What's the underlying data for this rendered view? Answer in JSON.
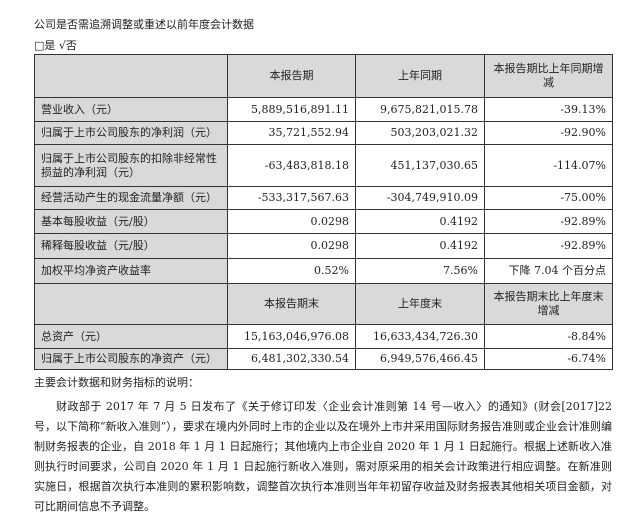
{
  "heading": "公司是否需追溯调整或重述以前年度会计数据",
  "choice": "□是 √否",
  "table1": {
    "headers": [
      "",
      "本报告期",
      "上年同期",
      "本报告期比上年同期增减"
    ],
    "rows": [
      [
        "营业收入（元）",
        "5,889,516,891.11",
        "9,675,821,015.78",
        "-39.13%"
      ],
      [
        "归属于上市公司股东的净利润（元）",
        "35,721,552.94",
        "503,203,021.32",
        "-92.90%"
      ],
      [
        "归属于上市公司股东的扣除非经常性损益的净利润（元）",
        "-63,483,818.18",
        "451,137,030.65",
        "-114.07%"
      ],
      [
        "经营活动产生的现金流量净额（元）",
        "-533,317,567.63",
        "-304,749,910.09",
        "-75.00%"
      ],
      [
        "基本每股收益（元/股）",
        "0.0298",
        "0.4192",
        "-92.89%"
      ],
      [
        "稀释每股收益（元/股）",
        "0.0298",
        "0.4192",
        "-92.89%"
      ],
      [
        "加权平均净资产收益率",
        "0.52%",
        "7.56%",
        "下降 7.04 个百分点"
      ]
    ]
  },
  "table2": {
    "headers": [
      "",
      "本报告期末",
      "上年度末",
      "本报告期末比上年度末增减"
    ],
    "rows": [
      [
        "总资产（元）",
        "15,163,046,976.08",
        "16,633,434,726.30",
        "-8.84%"
      ],
      [
        "归属于上市公司股东的净资产（元）",
        "6,481,302,330.54",
        "6,949,576,466.45",
        "-6.74%"
      ]
    ]
  },
  "notes_title": "主要会计数据和财务指标的说明：",
  "notes_body": "财政部于 2017 年 7 月 5 日发布了《关于修订印发〈企业会计准则第 14 号—收入〉的通知》(财会[2017]22 号，以下简称“新收入准则”），要求在境内外同时上市的企业以及在境外上市并采用国际财务报告准则或企业会计准则编制财务报表的企业，自 2018 年 1 月 1 日起施行；其他境内上市企业自 2020 年 1 月 1 日起施行。根据上述新收入准则执行时间要求，公司自 2020 年 1 月 1 日起施行新收入准则，需对原采用的相关会计政策进行相应调整。在新准则实施日，根据首次执行本准则的累积影响数，调整首次执行本准则当年年初留存收益及财务报表其他相关项目金额，对可比期间信息不予调整。"
}
